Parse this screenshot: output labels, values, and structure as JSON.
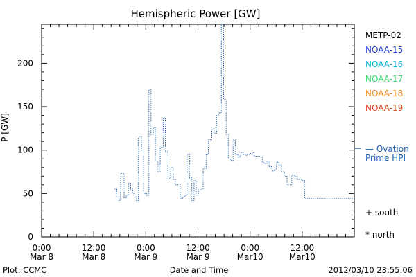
{
  "chart_data": {
    "type": "line",
    "title": "Hemispheric Power [GW]",
    "xlabel": "Date and Time",
    "ylabel": "P [GW]",
    "ylim": [
      0,
      245
    ],
    "yticks": [
      0,
      50,
      100,
      150,
      200
    ],
    "x_unit": "hours since 2012-03-08 00:00",
    "xlim": [
      0,
      72
    ],
    "xticks": [
      {
        "x": 0,
        "line1": "0:00",
        "line2": "Mar 8"
      },
      {
        "x": 12,
        "line1": "12:00",
        "line2": "Mar 8"
      },
      {
        "x": 24,
        "line1": "0:00",
        "line2": "Mar 9"
      },
      {
        "x": 36,
        "line1": "12:00",
        "line2": "Mar 9"
      },
      {
        "x": 48,
        "line1": "0:00",
        "line2": "Mar10"
      },
      {
        "x": 60,
        "line1": "12:00",
        "line2": "Mar10"
      }
    ],
    "legend": [
      {
        "name": "METP-02",
        "color": "#000000"
      },
      {
        "name": "NOAA-15",
        "color": "#1f3fd0"
      },
      {
        "name": "NOAA-16",
        "color": "#00b8d8"
      },
      {
        "name": "NOAA-17",
        "color": "#2fd86a"
      },
      {
        "name": "NOAA-18",
        "color": "#f08a1a"
      },
      {
        "name": "NOAA-19",
        "color": "#e0401a"
      }
    ],
    "reference": {
      "label_line1": "— Ovation",
      "label_line2": "Prime HPI",
      "value": 102,
      "color": "#1a5fb4"
    },
    "markers": [
      {
        "symbol": "+",
        "label": "south"
      },
      {
        "symbol": "*",
        "label": "north"
      }
    ],
    "series": [
      {
        "name": "Ovation Prime HPI",
        "color": "#1a5fb4",
        "style": "dotted-step",
        "x": [
          16.8,
          17.3,
          17.8,
          18.2,
          19.0,
          19.5,
          20.0,
          20.5,
          21.0,
          21.5,
          21.8,
          22.3,
          23.0,
          23.5,
          24.2,
          24.7,
          25.2,
          25.7,
          26.2,
          26.8,
          27.3,
          28.0,
          28.5,
          29.1,
          29.7,
          30.3,
          30.8,
          31.4,
          31.9,
          32.5,
          33.0,
          33.5,
          34.1,
          34.6,
          35.1,
          35.6,
          36.1,
          36.6,
          37.2,
          37.9,
          38.4,
          39.2,
          39.7,
          40.3,
          40.8,
          41.4,
          41.9,
          42.5,
          43.0,
          43.5,
          44.1,
          44.6,
          45.2,
          45.8,
          46.4,
          46.9,
          47.4,
          48.0,
          48.5,
          49.0,
          49.6,
          50.2,
          50.8,
          51.3,
          51.9,
          52.4,
          53.0,
          53.6,
          54.1,
          54.7,
          55.3,
          55.9,
          56.5,
          57.0,
          57.6,
          58.2,
          58.8,
          59.4,
          60.0,
          60.6,
          61.2,
          61.8,
          62.4,
          63.0,
          63.6,
          64.2,
          64.8,
          65.4,
          66.0,
          66.6,
          67.2,
          67.8,
          68.4,
          69.0,
          69.6,
          70.2,
          70.8,
          71.4,
          72.0
        ],
        "y": [
          55,
          46,
          42,
          73,
          45,
          48,
          62,
          55,
          50,
          46,
          42,
          115,
          100,
          50,
          48,
          170,
          118,
          126,
          87,
          75,
          103,
          137,
          98,
          67,
          80,
          66,
          60,
          60,
          44,
          46,
          48,
          95,
          68,
          42,
          65,
          48,
          54,
          55,
          79,
          95,
          112,
          124,
          119,
          140,
          143,
          245,
          158,
          118,
          90,
          88,
          112,
          95,
          92,
          97,
          95,
          94,
          95,
          96,
          97,
          93,
          93,
          92,
          86,
          84,
          87,
          81,
          76,
          78,
          86,
          82,
          75,
          70,
          60,
          60,
          71,
          70,
          66,
          66,
          65,
          44,
          44,
          44,
          44,
          44,
          44,
          44,
          44,
          44,
          44,
          44,
          44,
          44,
          44,
          44,
          44,
          44,
          44,
          44,
          44
        ]
      }
    ]
  },
  "footer": {
    "left": "Plot: CCMC",
    "center": "Date and Time",
    "right": "2012/03/10 23:55:06"
  }
}
